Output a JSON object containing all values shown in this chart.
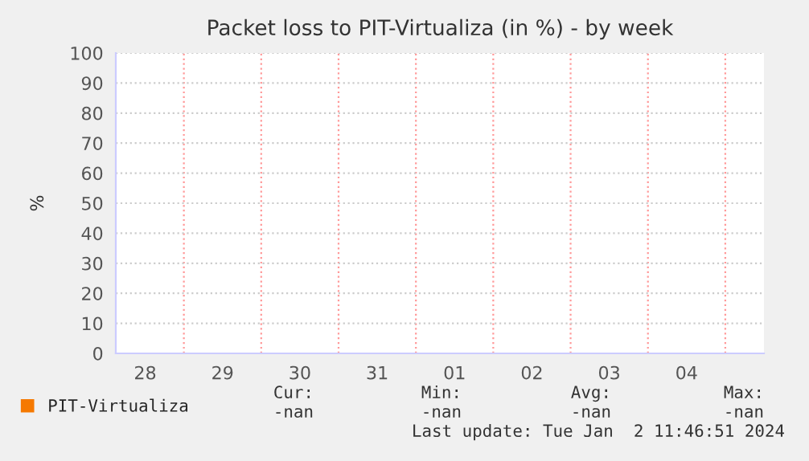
{
  "chart_data": {
    "type": "line",
    "title": "Packet loss to PIT-Virtualiza (in %) - by week",
    "ylabel": "%",
    "categories": [
      "28",
      "29",
      "30",
      "31",
      "01",
      "02",
      "03",
      "04"
    ],
    "series": [
      {
        "name": "PIT-Virtualiza",
        "color": "#f57900",
        "values": [
          null,
          null,
          null,
          null,
          null,
          null,
          null,
          null
        ]
      }
    ],
    "ylim": [
      0,
      100
    ],
    "yticks": [
      0,
      10,
      20,
      30,
      40,
      50,
      60,
      70,
      80,
      90,
      100
    ],
    "grid": true,
    "legend": "bottom left",
    "annotations": [
      "Cur:",
      "-nan",
      "Min:",
      "-nan",
      "Avg:",
      "-nan",
      "Max:",
      "-nan",
      "Last update: Tue Jan  2 11:46:51 2024"
    ]
  }
}
